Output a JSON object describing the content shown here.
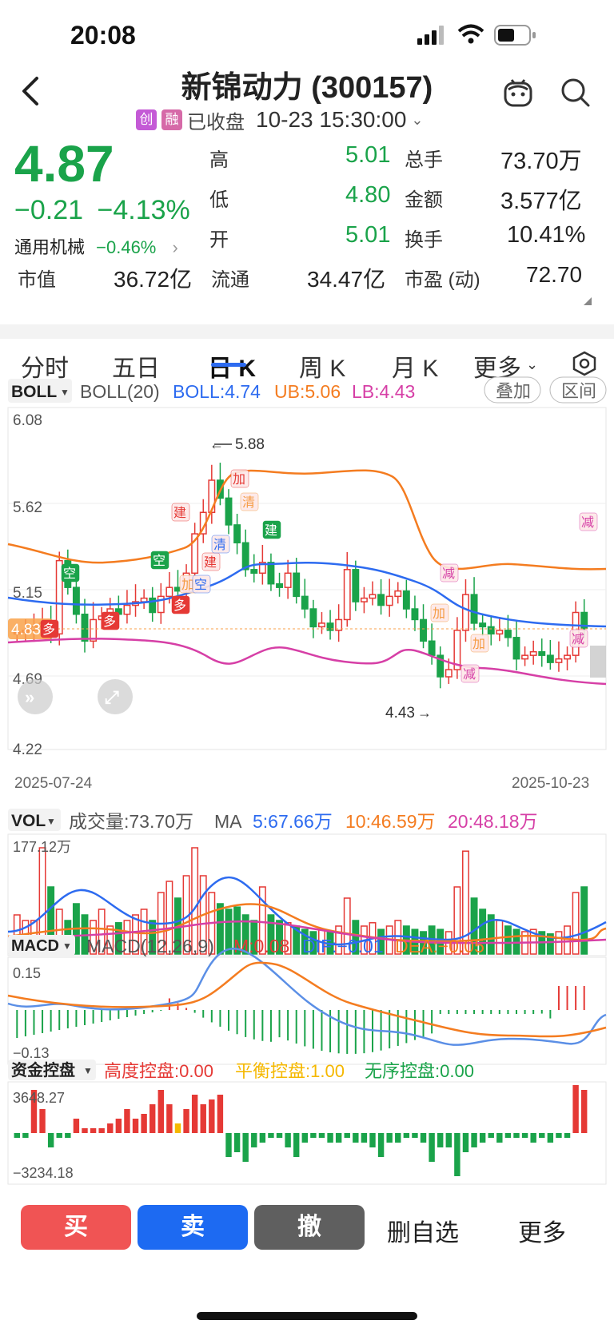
{
  "status": {
    "time": "20:08"
  },
  "header": {
    "title": "新锦动力 (300157)",
    "tag1": "创",
    "tag2": "融",
    "market_state": "已收盘",
    "datetime": "10-23 15:30:00"
  },
  "quote": {
    "price": "4.87",
    "change": "−0.21",
    "change_pct": "−4.13%",
    "industry": "通用机械",
    "industry_chg": "−0.46%",
    "market_cap_label": "市值",
    "market_cap": "36.72亿",
    "float_label": "流通",
    "float_cap": "34.47亿",
    "high_label": "高",
    "high": "5.01",
    "low_label": "低",
    "low": "4.80",
    "open_label": "开",
    "open": "5.01",
    "volume_label": "总手",
    "volume": "73.70万",
    "amount_label": "金额",
    "amount": "3.577亿",
    "turnover_label": "换手",
    "turnover": "10.41%",
    "pe_label": "市盈 (动)",
    "pe": "72.70"
  },
  "tabs": [
    "分时",
    "五日",
    "日 K",
    "周 K",
    "月 K",
    "更多"
  ],
  "boll": {
    "selector": "BOLL",
    "params": "BOLL(20)",
    "mid": "BOLL:4.74",
    "ub": "UB:5.06",
    "lb": "LB:4.43",
    "btn_overlay": "叠加",
    "btn_range": "区间"
  },
  "kline": {
    "y_labels": [
      "6.08",
      "5.62",
      "5.15",
      "4.69",
      "4.22"
    ],
    "current_price_tag": "4.83",
    "high_note": "5.88",
    "low_note": "4.43",
    "date_start": "2025-07-24",
    "date_end": "2025-10-23",
    "signals": [
      "多",
      "空",
      "多",
      "空",
      "多",
      "建",
      "加",
      "建",
      "清",
      "加",
      "清",
      "空",
      "建",
      "减",
      "加",
      "减",
      "加",
      "减",
      "减"
    ]
  },
  "vol": {
    "selector": "VOL",
    "text": "成交量:73.70万",
    "ma": "MA",
    "ma5": "5:67.66万",
    "ma10": "10:46.59万",
    "ma20": "20:48.18万",
    "max_label": "177.12万"
  },
  "macd": {
    "selector": "MACD",
    "params": "MACD(12,26,9)",
    "m": "M:0.08",
    "dif": "DIF:−0.01",
    "dea": "DEA:−0.05",
    "top_label": "0.15",
    "bottom_label": "−0.13"
  },
  "capital": {
    "selector": "资金控盘",
    "high": "高度控盘:0.00",
    "balance": "平衡控盘:1.00",
    "disorder": "无序控盘:0.00",
    "top_label": "3648.27",
    "bottom_label": "−3234.18"
  },
  "bottom": {
    "buy": "买",
    "sell": "卖",
    "cancel": "撤",
    "remove_watch": "删自选",
    "more": "更多"
  },
  "colors": {
    "up": "#e53935",
    "down": "#1aa34a",
    "mid": "#2d6bf0",
    "ub": "#f47c20",
    "lb": "#d63fa6",
    "gold": "#f5b800"
  },
  "chart_data": [
    {
      "type": "candlestick",
      "title": "BOLL(20)",
      "ylim": [
        4.22,
        6.08
      ],
      "x_range": [
        "2025-07-24",
        "2025-10-23"
      ],
      "series": [
        {
          "name": "BOLL",
          "last": 4.74
        },
        {
          "name": "UB",
          "last": 5.06
        },
        {
          "name": "LB",
          "last": 4.43
        }
      ],
      "annotations": [
        {
          "text": "5.88"
        },
        {
          "text": "4.43"
        }
      ]
    },
    {
      "type": "bar",
      "title": "VOL",
      "ylim": [
        0,
        177.12
      ],
      "series": [
        {
          "name": "MA5",
          "last": 67.66
        },
        {
          "name": "MA10",
          "last": 46.59
        },
        {
          "name": "MA20",
          "last": 48.18
        }
      ]
    },
    {
      "type": "bar",
      "title": "MACD(12,26,9)",
      "ylim": [
        -0.13,
        0.15
      ],
      "series": [
        {
          "name": "M",
          "last": 0.08
        },
        {
          "name": "DIF",
          "last": -0.01
        },
        {
          "name": "DEA",
          "last": -0.05
        }
      ]
    },
    {
      "type": "bar",
      "title": "资金控盘",
      "ylim": [
        -3234.18,
        3648.27
      ]
    }
  ]
}
